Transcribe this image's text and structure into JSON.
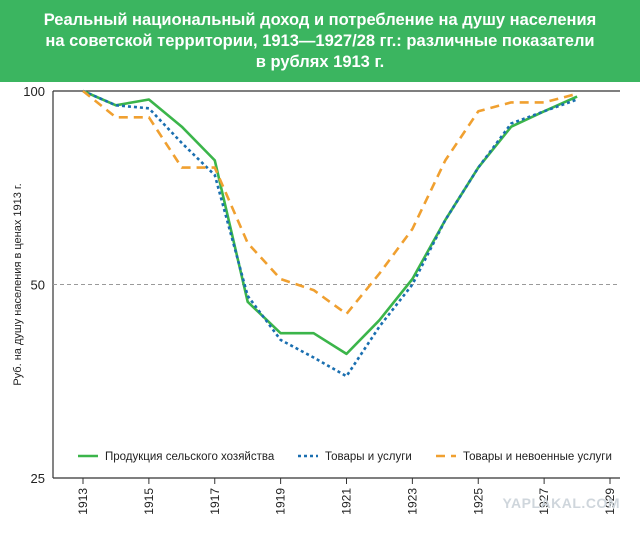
{
  "title_lines": [
    "Реальный национальный доход и потребление на душу населения",
    "на советской территории, 1913—1927/28 гг.: различные показатели",
    "в рублях 1913 г."
  ],
  "watermark": "YAPLAKAL.COM",
  "colors": {
    "banner": "#3bb560",
    "agriculture": "#3bb54a",
    "goods": "#1a6fb0",
    "nonmilitary": "#f0a030",
    "refline": "#9a9a9a"
  },
  "chart_data": {
    "type": "line",
    "title": "Реальный национальный доход и потребление на душу населения на советской территории, 1913—1927/28 гг.: различные показатели в рублях 1913 г.",
    "ylabel": "Руб. на душу населения в ценах 1913 г.",
    "xlabel": "",
    "yscale": "log",
    "ylim": [
      25,
      100
    ],
    "xlim": [
      1913,
      1929
    ],
    "y_ticks": [
      "100",
      "50",
      "25"
    ],
    "x_ticks": [
      "1913",
      "1915",
      "1917",
      "1919",
      "1921",
      "1923",
      "1925",
      "1927",
      "1929"
    ],
    "reference_line": 50,
    "legend_position": "bottom",
    "series": [
      {
        "name": "Продукция сельского хозяйства",
        "style": "solid",
        "x": [
          1913,
          1914,
          1915,
          1916,
          1917,
          1918,
          1919,
          1920,
          1921,
          1922,
          1923,
          1924,
          1925,
          1926,
          1927,
          1928
        ],
        "y": [
          100,
          95,
          97,
          88,
          78,
          47,
          42,
          42,
          39,
          44,
          51,
          63,
          76,
          88,
          93,
          98
        ]
      },
      {
        "name": "Товары и услуги",
        "style": "dotted",
        "x": [
          1913,
          1914,
          1915,
          1916,
          1917,
          1918,
          1919,
          1920,
          1921,
          1922,
          1923,
          1924,
          1925,
          1926,
          1927,
          1928
        ],
        "y": [
          100,
          95,
          94,
          83,
          74,
          48,
          41,
          38.5,
          36,
          43,
          50,
          63,
          76,
          89,
          93,
          97
        ]
      },
      {
        "name": "Товары и невоенные услуги",
        "style": "dashed",
        "x": [
          1913,
          1914,
          1915,
          1916,
          1917,
          1918,
          1919,
          1920,
          1921,
          1922,
          1923,
          1924,
          1925,
          1926,
          1927,
          1928
        ],
        "y": [
          100,
          91,
          91,
          76,
          76,
          58,
          51,
          49,
          45,
          52,
          61,
          78,
          93,
          96,
          96,
          99
        ]
      }
    ]
  }
}
